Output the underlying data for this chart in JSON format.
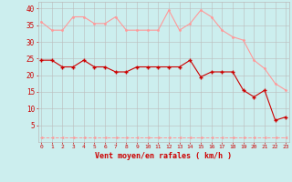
{
  "hours": [
    0,
    1,
    2,
    3,
    4,
    5,
    6,
    7,
    8,
    9,
    10,
    11,
    12,
    13,
    14,
    15,
    16,
    17,
    18,
    19,
    20,
    21,
    22,
    23
  ],
  "wind_avg": [
    24.5,
    24.5,
    22.5,
    22.5,
    24.5,
    22.5,
    22.5,
    21,
    21,
    22.5,
    22.5,
    22.5,
    22.5,
    22.5,
    24.5,
    19.5,
    21,
    21,
    21,
    15.5,
    13.5,
    15.5,
    6.5,
    7.5
  ],
  "wind_gust": [
    36,
    33.5,
    33.5,
    37.5,
    37.5,
    35.5,
    35.5,
    37.5,
    33.5,
    33.5,
    33.5,
    33.5,
    39.5,
    33.5,
    35.5,
    39.5,
    37.5,
    33.5,
    31.5,
    30.5,
    24.5,
    22,
    17.5,
    15.5
  ],
  "wind_min": [
    1.5,
    1.5,
    1.5,
    1.5,
    1.5,
    1.5,
    1.5,
    1.5,
    1.5,
    1.5,
    1.5,
    1.5,
    1.5,
    1.5,
    1.5,
    1.5,
    1.5,
    1.5,
    1.5,
    1.5,
    1.5,
    1.5,
    1.5,
    1.5
  ],
  "avg_color": "#cc0000",
  "gust_color": "#ff9999",
  "min_color": "#ff9999",
  "bg_color": "#cceeee",
  "grid_color": "#bbbbbb",
  "xlabel": "Vent moyen/en rafales ( km/h )",
  "xlabel_color": "#cc0000",
  "tick_color": "#cc0000",
  "ylim": [
    0,
    42
  ],
  "yticks": [
    5,
    10,
    15,
    20,
    25,
    30,
    35,
    40
  ],
  "figsize": [
    3.2,
    2.0
  ],
  "dpi": 100
}
